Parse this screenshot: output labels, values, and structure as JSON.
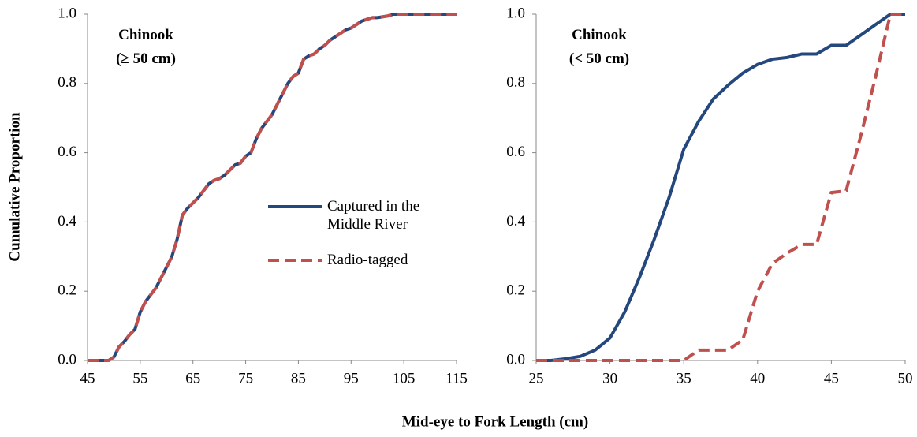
{
  "chart_data": [
    {
      "type": "line",
      "annotation": [
        "Chinook",
        "(≥ 50 cm)"
      ],
      "ylabel": "Cumulative Proportion",
      "xlabel": "Mid-eye to Fork Length (cm)",
      "x": [
        45,
        49,
        50,
        51,
        52,
        53,
        54,
        55,
        56,
        57,
        58,
        59,
        60,
        61,
        62,
        63,
        64,
        65,
        66,
        67,
        68,
        69,
        70,
        71,
        72,
        73,
        74,
        75,
        76,
        77,
        78,
        79,
        80,
        81,
        82,
        83,
        84,
        85,
        86,
        87,
        88,
        89,
        90,
        91,
        92,
        93,
        94,
        95,
        96,
        97,
        98,
        99,
        100,
        102,
        103,
        115
      ],
      "series": [
        {
          "name": "Captured in the Middle River",
          "color": "#24487e",
          "dash": false,
          "values": [
            0,
            0,
            0.01,
            0.04,
            0.055,
            0.075,
            0.09,
            0.14,
            0.17,
            0.19,
            0.21,
            0.24,
            0.27,
            0.3,
            0.35,
            0.42,
            0.44,
            0.455,
            0.47,
            0.49,
            0.51,
            0.52,
            0.525,
            0.535,
            0.55,
            0.565,
            0.57,
            0.59,
            0.6,
            0.64,
            0.67,
            0.69,
            0.71,
            0.74,
            0.77,
            0.8,
            0.82,
            0.83,
            0.87,
            0.88,
            0.885,
            0.9,
            0.91,
            0.925,
            0.935,
            0.945,
            0.955,
            0.96,
            0.97,
            0.98,
            0.985,
            0.99,
            0.99,
            0.995,
            1,
            1
          ]
        },
        {
          "name": "Radio-tagged",
          "color": "#c0504d",
          "dash": true,
          "values": [
            0,
            0,
            0.01,
            0.04,
            0.055,
            0.075,
            0.09,
            0.14,
            0.17,
            0.19,
            0.21,
            0.24,
            0.27,
            0.3,
            0.35,
            0.42,
            0.44,
            0.455,
            0.47,
            0.49,
            0.51,
            0.52,
            0.525,
            0.535,
            0.55,
            0.565,
            0.57,
            0.59,
            0.6,
            0.64,
            0.67,
            0.69,
            0.71,
            0.74,
            0.77,
            0.8,
            0.82,
            0.83,
            0.87,
            0.88,
            0.885,
            0.9,
            0.91,
            0.925,
            0.935,
            0.945,
            0.955,
            0.96,
            0.97,
            0.98,
            0.985,
            0.99,
            0.99,
            0.995,
            1,
            1
          ]
        }
      ],
      "xlim": [
        45,
        115
      ],
      "xticks": [
        45,
        55,
        65,
        75,
        85,
        95,
        105,
        115
      ],
      "ylim": [
        0,
        1
      ],
      "yticks": [
        {
          "value": 0,
          "label": "0.0"
        },
        0.2,
        0.4,
        0.6,
        0.8,
        {
          "value": 1,
          "label": "1.0"
        }
      ],
      "legend": "center-right"
    },
    {
      "type": "line",
      "annotation": [
        "Chinook",
        "(< 50 cm)"
      ],
      "x": [
        25,
        26,
        27,
        28,
        29,
        30,
        31,
        32,
        33,
        34,
        35,
        36,
        37,
        38,
        39,
        40,
        41,
        42,
        43,
        44,
        45,
        46,
        47,
        48,
        49,
        50
      ],
      "series": [
        {
          "color": "#24487e",
          "dash": false,
          "values": [
            0,
            0,
            0.005,
            0.012,
            0.03,
            0.065,
            0.14,
            0.24,
            0.35,
            0.47,
            0.61,
            0.69,
            0.755,
            0.795,
            0.83,
            0.855,
            0.87,
            0.875,
            0.885,
            0.885,
            0.91,
            0.91,
            0.94,
            0.97,
            1,
            1
          ]
        },
        {
          "color": "#c0504d",
          "dash": true,
          "values": [
            0,
            0,
            0,
            0,
            0,
            0,
            0,
            0,
            0,
            0,
            0,
            0.03,
            0.03,
            0.03,
            0.06,
            0.2,
            0.28,
            0.31,
            0.335,
            0.335,
            0.485,
            0.49,
            0.65,
            0.82,
            1,
            1
          ]
        }
      ],
      "xlim": [
        25,
        50
      ],
      "xticks": [
        25,
        30,
        35,
        40,
        45,
        50
      ],
      "ylim": [
        0,
        1
      ],
      "yticks": [
        {
          "value": 0,
          "label": "0.0"
        },
        0.2,
        0.4,
        0.6,
        0.8,
        {
          "value": 1,
          "label": "1.0"
        }
      ]
    }
  ]
}
